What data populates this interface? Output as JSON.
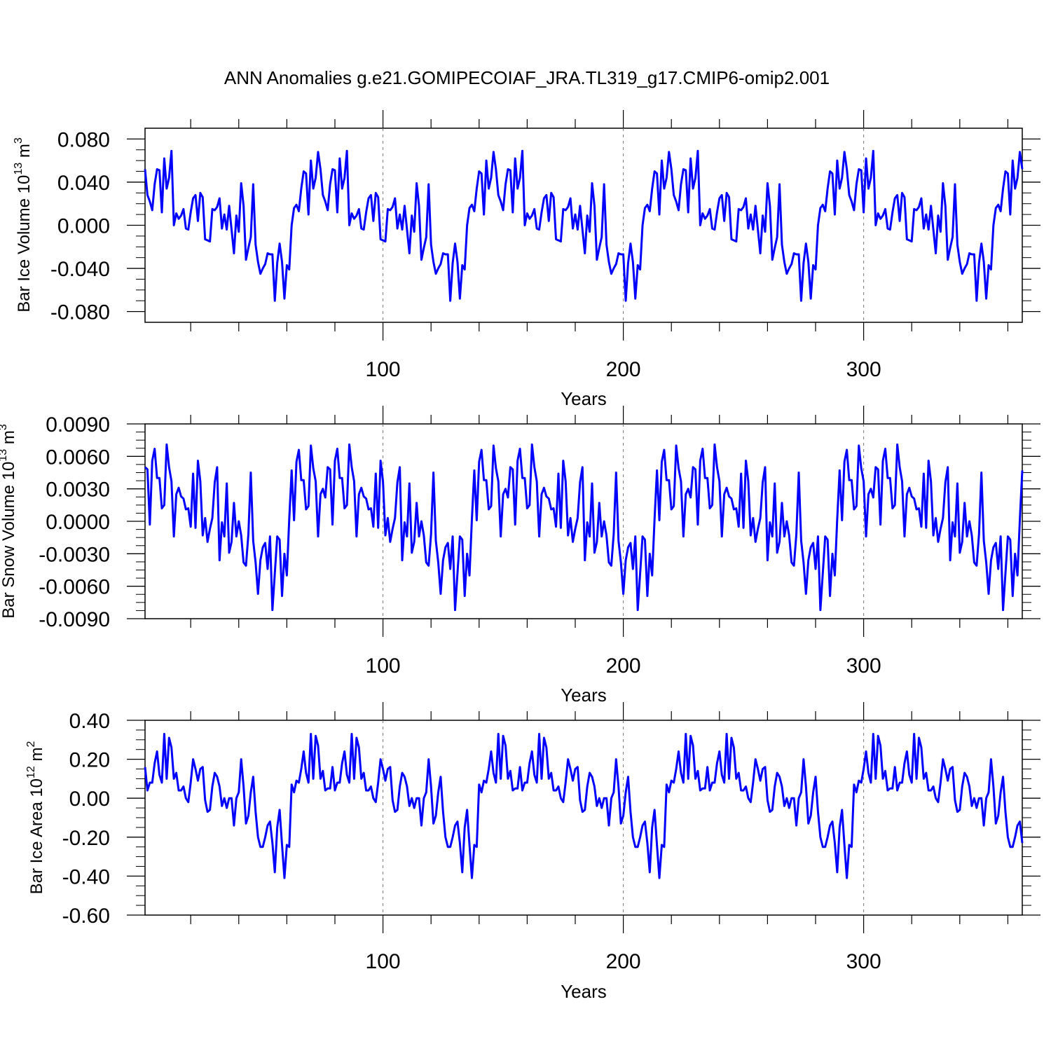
{
  "title": "ANN Anomalies g.e21.GOMIPECOIAF_JRA.TL319_g17.CMIP6-omip2.001",
  "series_color": "#0000ff",
  "chart_data": [
    {
      "type": "line",
      "ylabel": "Bar Ice Volume 10",
      "ylabel_exp": "13",
      "ylabel_unit": " m",
      "ylabel_unit_exp": "3",
      "xlabel": "Years",
      "xlim": [
        1,
        366
      ],
      "ylim": [
        -0.09,
        0.09
      ],
      "xticks": [
        100,
        200,
        300
      ],
      "xtick_labels": [
        "100",
        "200",
        "300"
      ],
      "yticks": [
        0.08,
        0.04,
        0.0,
        -0.04,
        -0.08
      ],
      "ytick_labels": [
        "0.080",
        "0.040",
        "0.000",
        "-0.040",
        "-0.080"
      ],
      "grid_x": [
        100,
        200,
        300
      ],
      "cycle": [
        0.052,
        0.028,
        0.022,
        0.014,
        0.038,
        0.052,
        0.051,
        0.012,
        0.062,
        0.034,
        0.044,
        0.069,
        0.0,
        0.011,
        0.006,
        0.009,
        0.015,
        -0.003,
        -0.004,
        0.012,
        0.025,
        0.028,
        0.004,
        0.03,
        0.026,
        -0.013,
        -0.014,
        -0.015,
        0.015,
        0.014,
        0.017,
        0.025,
        -0.003,
        0.01,
        -0.004,
        0.018,
        -0.004,
        -0.026,
        0.009,
        -0.006,
        0.039,
        0.018,
        -0.032,
        -0.021,
        -0.011,
        0.038,
        -0.018,
        -0.034,
        -0.045,
        -0.04,
        -0.036,
        -0.026,
        -0.027,
        -0.027,
        -0.07,
        -0.035,
        -0.017,
        -0.034,
        -0.068,
        -0.037,
        -0.041,
        0.0,
        0.016,
        0.019,
        0.013,
        0.034,
        0.05,
        0.048,
        0.01,
        0.06,
        0.034,
        0.044,
        0.068
      ]
    },
    {
      "type": "line",
      "ylabel": "Bar Snow Volume 10",
      "ylabel_exp": "13",
      "ylabel_unit": " m",
      "ylabel_unit_exp": "3",
      "xlabel": "Years",
      "xlim": [
        1,
        366
      ],
      "ylim": [
        -0.009,
        0.009
      ],
      "xticks": [
        100,
        200,
        300
      ],
      "xtick_labels": [
        "100",
        "200",
        "300"
      ],
      "yticks": [
        0.009,
        0.006,
        0.003,
        0.0,
        -0.003,
        -0.006,
        -0.009
      ],
      "ytick_labels": [
        "0.0090",
        "0.0060",
        "0.0030",
        "0.0000",
        "-0.0030",
        "-0.0060",
        "-0.0090"
      ],
      "grid_x": [
        100,
        200,
        300
      ],
      "cycle": [
        0.005,
        0.0048,
        -0.0003,
        0.0056,
        0.0067,
        0.004,
        0.004,
        0.0012,
        0.0015,
        0.0071,
        0.005,
        0.0037,
        -0.0014,
        0.0025,
        0.0031,
        0.0023,
        0.0021,
        0.0011,
        0.0012,
        -0.0005,
        0.0044,
        -0.0006,
        0.0056,
        0.0037,
        -0.0013,
        0.0003,
        -0.0019,
        -0.0007,
        0.0003,
        0.0036,
        0.005,
        -0.0036,
        -0.0001,
        -0.0014,
        0.0035,
        -0.0029,
        -0.0019,
        0.0017,
        -0.0014,
        0.0,
        -0.0013,
        -0.0038,
        -0.0041,
        -0.0012,
        0.0045,
        -0.0018,
        -0.0038,
        -0.0067,
        -0.0036,
        -0.0024,
        -0.002,
        -0.0044,
        -0.0014,
        -0.0082,
        -0.0048,
        -0.0014,
        -0.0017,
        -0.0069,
        -0.003,
        -0.005,
        0.0002,
        0.0047,
        0.0001,
        0.0055,
        0.0066,
        0.0038,
        0.0038,
        0.0011,
        0.0014,
        0.007,
        0.0049,
        0.0037,
        -0.0014,
        0.0025,
        0.003,
        0.0022
      ]
    },
    {
      "type": "line",
      "ylabel": "Bar Ice Area 10",
      "ylabel_exp": "12",
      "ylabel_unit": " m",
      "ylabel_unit_exp": "2",
      "xlabel": "Years",
      "xlim": [
        1,
        366
      ],
      "ylim": [
        -0.6,
        0.4
      ],
      "xticks": [
        100,
        200,
        300
      ],
      "xtick_labels": [
        "100",
        "200",
        "300"
      ],
      "yticks": [
        0.4,
        0.2,
        0.0,
        -0.2,
        -0.4,
        -0.6
      ],
      "ytick_labels": [
        "0.40",
        "0.20",
        "0.00",
        "-0.20",
        "-0.40",
        "-0.60"
      ],
      "grid_x": [
        100,
        200,
        300
      ],
      "cycle": [
        0.16,
        0.04,
        0.08,
        0.08,
        0.18,
        0.24,
        0.12,
        0.08,
        0.33,
        0.1,
        0.31,
        0.26,
        0.1,
        0.13,
        0.04,
        0.04,
        0.06,
        0.0,
        -0.02,
        0.08,
        0.2,
        0.15,
        0.09,
        0.15,
        0.16,
        -0.01,
        -0.07,
        -0.06,
        0.06,
        0.13,
        0.11,
        0.06,
        -0.04,
        0.0,
        -0.05,
        0.0,
        0.0,
        -0.14,
        0.0,
        0.03,
        0.2,
        0.06,
        -0.13,
        -0.09,
        0.03,
        0.11,
        -0.07,
        -0.2,
        -0.25,
        -0.25,
        -0.2,
        -0.14,
        -0.12,
        -0.23,
        -0.38,
        -0.15,
        -0.06,
        -0.24,
        -0.41,
        -0.24,
        -0.25,
        0.07,
        0.03,
        0.09,
        0.08,
        0.15,
        0.24,
        0.13,
        0.08,
        0.33,
        0.1,
        0.32,
        0.27,
        0.1,
        0.14,
        0.04,
        0.05,
        0.05
      ]
    }
  ]
}
